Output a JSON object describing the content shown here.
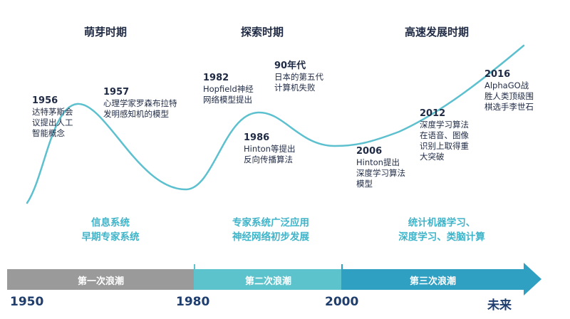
{
  "eras": [
    {
      "title": "萌芽时期",
      "tech": [
        "信息系统",
        "早期专家系统"
      ],
      "band": "第一次浪潮"
    },
    {
      "title": "探索时期",
      "tech": [
        "专家系统广泛应用",
        "神经网络初步发展"
      ],
      "band": "第二次浪潮"
    },
    {
      "title": "高速发展时期",
      "tech": [
        "统计机器学习、",
        "深度学习、类脑计算"
      ],
      "band": "第三次浪潮"
    }
  ],
  "events": [
    {
      "year": "1956",
      "lines": [
        "达特茅斯会",
        "议提出人工",
        "智能概念"
      ]
    },
    {
      "year": "1957",
      "lines": [
        "心理学家罗森布拉特",
        "发明感知机的模型"
      ]
    },
    {
      "year": "1982",
      "lines": [
        "Hopfield神经",
        "网络模型提出"
      ]
    },
    {
      "year": "90年代",
      "lines": [
        "日本的第五代",
        "计算机失败"
      ]
    },
    {
      "year": "1986",
      "lines": [
        "Hinton等提出",
        "反向传播算法"
      ]
    },
    {
      "year": "2006",
      "lines": [
        "Hinton提出",
        "深度学习算法",
        "模型"
      ]
    },
    {
      "year": "2012",
      "lines": [
        "深度学习算法",
        "在语音、图像",
        "识别上取得重",
        "大突破"
      ]
    },
    {
      "year": "2016",
      "lines": [
        "AlphaGO战",
        "胜人类顶级围",
        "棋选手李世石"
      ]
    }
  ],
  "axis": [
    "1950",
    "1980",
    "2000",
    "未来"
  ],
  "colors": {
    "curve": "#5cc0cf",
    "band1": "#9a9a9a",
    "band2": "#5cc3cc",
    "band3": "#2f9fc2",
    "tech_text": "#3fb4c9",
    "axis_text": "#1f3e6e"
  }
}
